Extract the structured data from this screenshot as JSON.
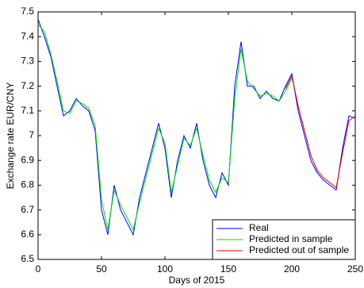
{
  "chart_data": {
    "type": "line",
    "xlabel": "Days of 2015",
    "ylabel": "Exchange rate EUR/CNY",
    "xlim": [
      0,
      250
    ],
    "xticks": [
      0,
      50,
      100,
      150,
      200,
      250
    ],
    "ylim": [
      6.5,
      7.5
    ],
    "yticks": [
      6.5,
      6.6,
      6.7,
      6.8,
      6.9,
      7,
      7.1,
      7.2,
      7.3,
      7.4,
      7.5
    ],
    "legend": "lower right",
    "series": [
      {
        "name": "Real",
        "color": "#0000ff",
        "x": [
          0,
          5,
          10,
          15,
          20,
          25,
          30,
          35,
          40,
          45,
          50,
          55,
          60,
          65,
          70,
          75,
          80,
          85,
          90,
          95,
          100,
          105,
          110,
          115,
          120,
          125,
          130,
          135,
          140,
          145,
          150,
          155,
          160,
          165,
          170,
          175,
          180,
          185,
          190,
          195,
          200,
          205,
          210,
          215,
          220,
          225,
          230,
          235,
          240,
          245,
          250
        ],
        "values": [
          7.47,
          7.4,
          7.32,
          7.2,
          7.08,
          7.1,
          7.15,
          7.12,
          7.1,
          7.02,
          6.7,
          6.6,
          6.8,
          6.7,
          6.65,
          6.6,
          6.75,
          6.85,
          6.95,
          7.05,
          6.95,
          6.75,
          6.9,
          7,
          6.95,
          7.05,
          6.9,
          6.8,
          6.75,
          6.85,
          6.8,
          7.2,
          7.38,
          7.2,
          7.2,
          7.15,
          7.18,
          7.15,
          7.14,
          7.2,
          7.25,
          7.1,
          7,
          6.9,
          6.85,
          6.82,
          6.8,
          6.78,
          6.95,
          7.08,
          7.07
        ]
      },
      {
        "name": "Predicted in sample",
        "color": "#00dd00",
        "x": [
          0,
          5,
          10,
          15,
          20,
          25,
          30,
          35,
          40,
          45,
          50,
          55,
          60,
          65,
          70,
          75,
          80,
          85,
          90,
          95,
          100,
          105,
          110,
          115,
          120,
          125,
          130,
          135,
          140,
          145,
          150,
          155,
          160,
          165,
          170,
          175,
          180,
          185,
          190,
          195,
          200
        ],
        "values": [
          7.45,
          7.42,
          7.33,
          7.22,
          7.1,
          7.09,
          7.14,
          7.13,
          7.11,
          7.04,
          6.74,
          6.62,
          6.78,
          6.72,
          6.67,
          6.62,
          6.73,
          6.83,
          6.93,
          7.03,
          6.97,
          6.77,
          6.88,
          6.99,
          6.96,
          7.03,
          6.92,
          6.82,
          6.77,
          6.83,
          6.81,
          7.15,
          7.35,
          7.22,
          7.19,
          7.16,
          7.17,
          7.16,
          7.14,
          7.18,
          7.23
        ]
      },
      {
        "name": "Predicted out of sample",
        "color": "#dd0000",
        "x": [
          195,
          200,
          205,
          210,
          215,
          220,
          225,
          230,
          235,
          240,
          245,
          250
        ],
        "values": [
          7.19,
          7.24,
          7.12,
          7.02,
          6.92,
          6.86,
          6.83,
          6.81,
          6.79,
          6.93,
          7.06,
          7.08
        ]
      }
    ]
  }
}
